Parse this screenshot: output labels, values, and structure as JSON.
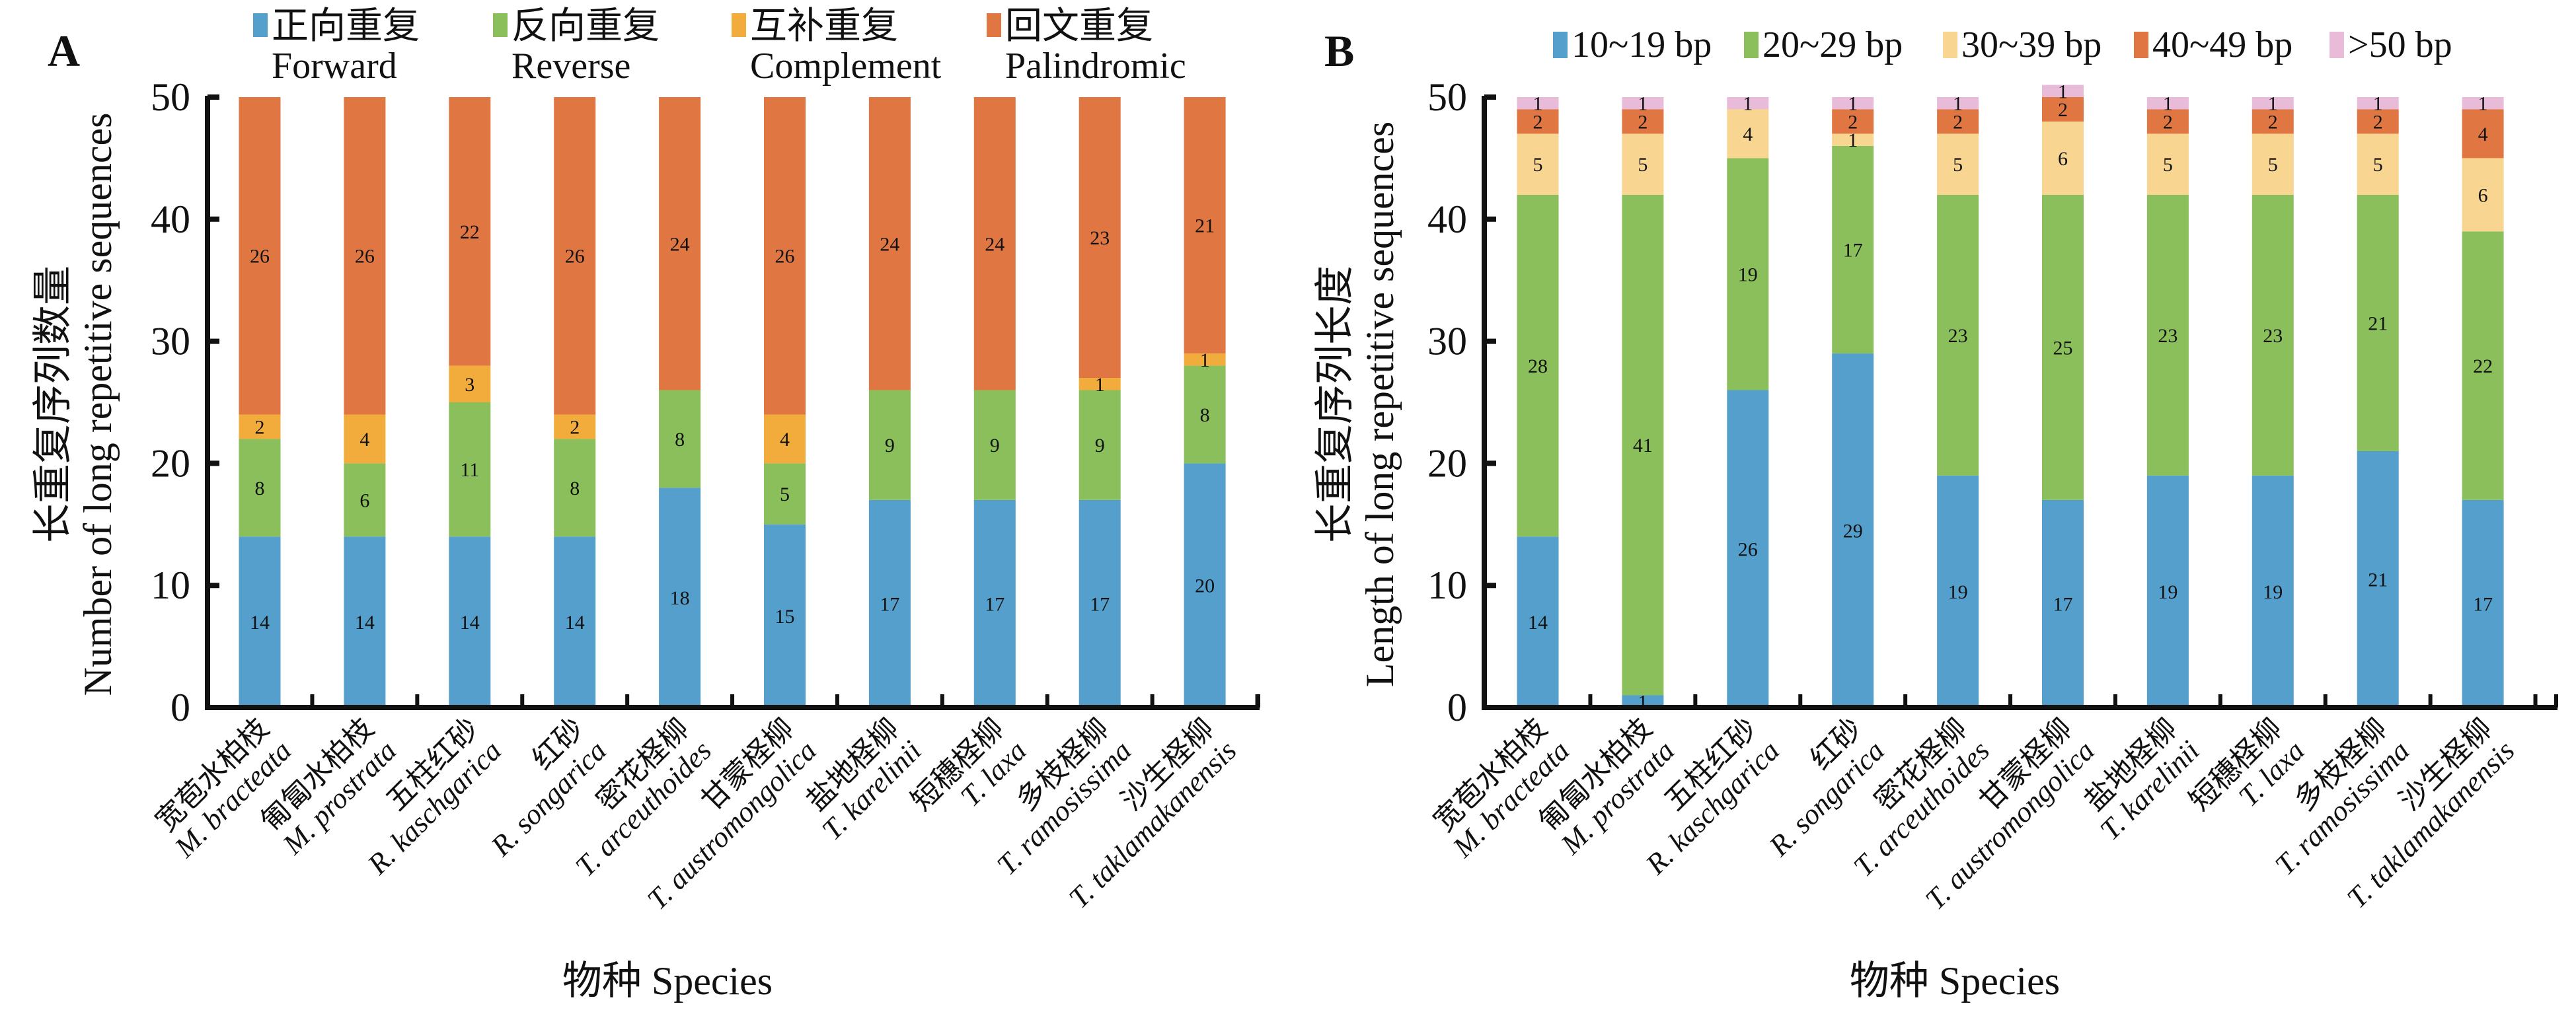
{
  "figure": {
    "panels": [
      "A",
      "B"
    ]
  },
  "chart_data": [
    {
      "panel": "A",
      "type": "bar",
      "stacked": true,
      "title": "",
      "xlabel": "物种 Species",
      "ylabel_cn": "长重复序列数量",
      "ylabel_en": "Number of long repetitive sequences",
      "ylim": [
        0,
        50
      ],
      "yticks": [
        0,
        10,
        20,
        30,
        40,
        50
      ],
      "grid": false,
      "legend_position": "top",
      "categories": [
        {
          "cn": "宽苞水柏枝",
          "latin": "M. bracteata"
        },
        {
          "cn": "匍匐水柏枝",
          "latin": "M. prostrata"
        },
        {
          "cn": "五柱红砂",
          "latin": "R. kaschgarica"
        },
        {
          "cn": "红砂",
          "latin": "R. songarica"
        },
        {
          "cn": "密花柽柳",
          "latin": "T. arceuthoides"
        },
        {
          "cn": "甘蒙柽柳",
          "latin": "T. austromongolica"
        },
        {
          "cn": "盐地柽柳",
          "latin": "T. karelinii"
        },
        {
          "cn": "短穗柽柳",
          "latin": "T. laxa"
        },
        {
          "cn": "多枝柽柳",
          "latin": "T. ramosissima"
        },
        {
          "cn": "沙生柽柳",
          "latin": "T. taklamakanensis"
        }
      ],
      "series": [
        {
          "name_cn": "正向重复",
          "name_en": "Forward",
          "color": "#559fcc",
          "values": [
            14,
            14,
            14,
            14,
            18,
            15,
            17,
            17,
            17,
            20
          ]
        },
        {
          "name_cn": "反向重复",
          "name_en": "Reverse",
          "color": "#8bbf5b",
          "values": [
            8,
            6,
            11,
            8,
            8,
            5,
            9,
            9,
            9,
            8
          ]
        },
        {
          "name_cn": "互补重复",
          "name_en": "Complement",
          "color": "#f2ac3c",
          "values": [
            2,
            4,
            3,
            2,
            0,
            4,
            0,
            0,
            1,
            1
          ]
        },
        {
          "name_cn": "回文重复",
          "name_en": "Palindromic",
          "color": "#e07743",
          "values": [
            26,
            26,
            22,
            26,
            24,
            26,
            24,
            24,
            23,
            21
          ]
        }
      ]
    },
    {
      "panel": "B",
      "type": "bar",
      "stacked": true,
      "title": "",
      "xlabel": "物种 Species",
      "ylabel_cn": "长重复序列长度",
      "ylabel_en": "Length of long repetitive sequences",
      "ylim": [
        0,
        50
      ],
      "yticks": [
        0,
        10,
        20,
        30,
        40,
        50
      ],
      "grid": false,
      "legend_position": "top",
      "categories": [
        {
          "cn": "宽苞水柏枝",
          "latin": "M. bracteata"
        },
        {
          "cn": "匍匐水柏枝",
          "latin": "M. prostrata"
        },
        {
          "cn": "五柱红砂",
          "latin": "R. kaschgarica"
        },
        {
          "cn": "红砂",
          "latin": "R. songarica"
        },
        {
          "cn": "密花柽柳",
          "latin": "T. arceuthoides"
        },
        {
          "cn": "甘蒙柽柳",
          "latin": "T. austromongolica"
        },
        {
          "cn": "盐地柽柳",
          "latin": "T. karelinii"
        },
        {
          "cn": "短穗柽柳",
          "latin": "T. laxa"
        },
        {
          "cn": "多枝柽柳",
          "latin": "T. ramosissima"
        },
        {
          "cn": "沙生柽柳",
          "latin": "T. taklamakanensis"
        }
      ],
      "series": [
        {
          "name": "10~19 bp",
          "color": "#559fcc",
          "values": [
            14,
            1,
            26,
            29,
            19,
            17,
            19,
            19,
            21,
            17
          ]
        },
        {
          "name": "20~29 bp",
          "color": "#8bbf5b",
          "values": [
            28,
            41,
            19,
            17,
            23,
            25,
            23,
            23,
            21,
            22
          ]
        },
        {
          "name": "30~39 bp",
          "color": "#f8d590",
          "values": [
            5,
            5,
            4,
            1,
            5,
            6,
            5,
            5,
            5,
            6
          ]
        },
        {
          "name": "40~49 bp",
          "color": "#e07743",
          "values": [
            2,
            2,
            0,
            2,
            2,
            2,
            2,
            2,
            2,
            4
          ]
        },
        {
          "name": ">50 bp",
          "color": "#e8bcd8",
          "values": [
            1,
            1,
            1,
            1,
            1,
            1,
            1,
            1,
            1,
            1
          ]
        }
      ]
    }
  ]
}
